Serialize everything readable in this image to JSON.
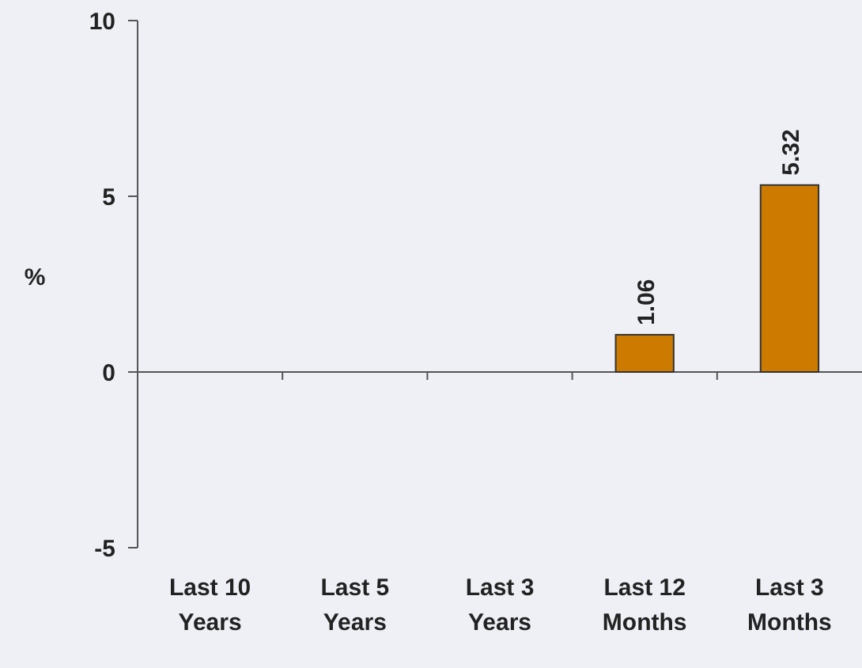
{
  "chart_data": {
    "type": "bar",
    "ylabel": "%",
    "categories": [
      "Last 10 Years",
      "Last 5 Years",
      "Last 3 Years",
      "Last 12 Months",
      "Last 3 Months"
    ],
    "values": [
      null,
      null,
      null,
      1.06,
      5.32
    ],
    "color": "#cc7a00",
    "ylim": [
      -5,
      10
    ],
    "yticks": [
      -5,
      0,
      5,
      10
    ],
    "data_labels": true
  }
}
